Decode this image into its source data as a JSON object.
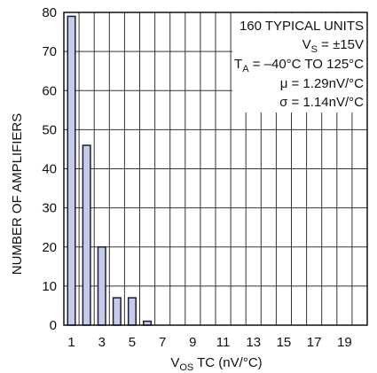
{
  "chart_data": {
    "type": "bar",
    "categories": [
      "1",
      "2",
      "3",
      "4",
      "5",
      "6",
      "7",
      "8",
      "9",
      "10",
      "11",
      "12",
      "13",
      "14",
      "15",
      "16",
      "17",
      "18",
      "19",
      "20"
    ],
    "values": [
      79,
      46,
      20,
      7,
      7,
      1,
      0,
      0,
      0,
      0,
      0,
      0,
      0,
      0,
      0,
      0,
      0,
      0,
      0,
      0
    ],
    "x_tick_labels": [
      "1",
      "3",
      "5",
      "7",
      "9",
      "11",
      "13",
      "15",
      "17",
      "19"
    ],
    "y_tick_labels": [
      "0",
      "10",
      "20",
      "30",
      "40",
      "50",
      "60",
      "70",
      "80"
    ],
    "ylim": [
      0,
      80
    ],
    "xlabel": {
      "main": "V",
      "sub": "OS",
      "rest": " TC (nV/°C)"
    },
    "ylabel": "NUMBER OF AMPLIFIERS",
    "grid": true,
    "bar_color": "#c5cce8",
    "annotation": {
      "line1": "160 TYPICAL UNITS",
      "line2": {
        "main": "V",
        "sub": "S",
        "rest": " = ±15V"
      },
      "line3": {
        "main": "T",
        "sub": "A",
        "rest": " = –40°C TO 125°C"
      },
      "line4": "μ = 1.29nV/°C",
      "line5": "σ = 1.14nV/°C"
    }
  }
}
